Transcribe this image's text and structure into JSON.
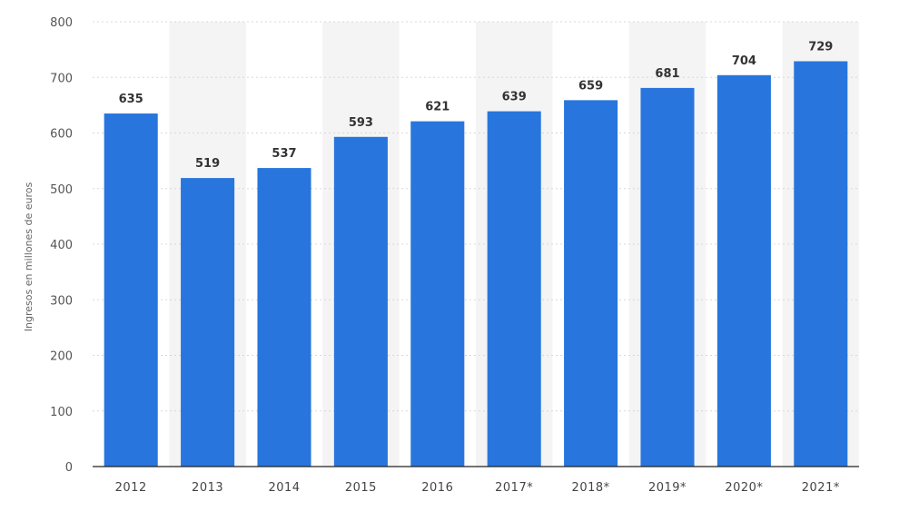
{
  "chart_data": {
    "type": "bar",
    "categories": [
      "2012",
      "2013",
      "2014",
      "2015",
      "2016",
      "2017*",
      "2018*",
      "2019*",
      "2020*",
      "2021*"
    ],
    "values": [
      635,
      519,
      537,
      593,
      621,
      639,
      659,
      681,
      704,
      729
    ],
    "value_labels": [
      "635",
      "519",
      "537",
      "593",
      "621",
      "639",
      "659",
      "681",
      "704",
      "729"
    ],
    "ylabel": "Ingresos en millones de euros",
    "xlabel": "",
    "ylim": [
      0,
      800
    ],
    "yticks": [
      0,
      100,
      200,
      300,
      400,
      500,
      600,
      700,
      800
    ],
    "ytick_labels": [
      "0",
      "100",
      "200",
      "300",
      "400",
      "500",
      "600",
      "700",
      "800"
    ],
    "grid": true,
    "legend": "none",
    "colors": {
      "bar": "#2876dd",
      "grid": "#d8d8d8",
      "band": "#f4f4f4",
      "axis": "#222222"
    }
  }
}
